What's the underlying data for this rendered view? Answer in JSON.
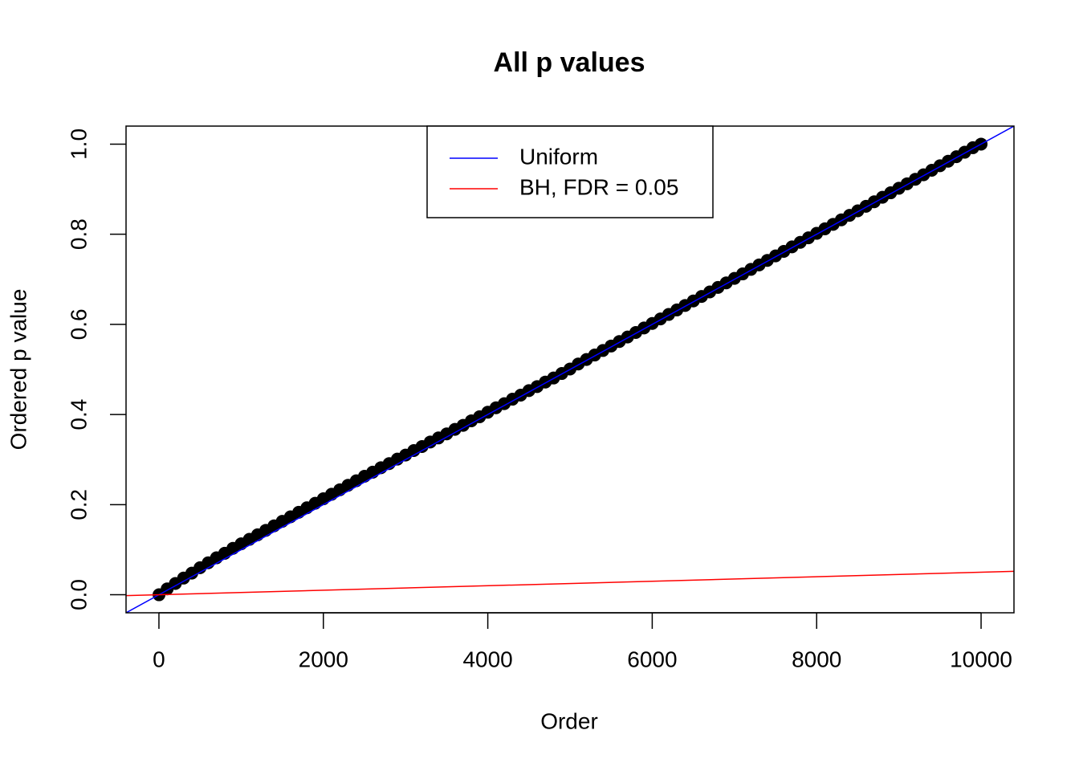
{
  "chart_data": {
    "type": "scatter",
    "title": "All p values",
    "xlabel": "Order",
    "ylabel": "Ordered p value",
    "x": [
      1,
      100,
      200,
      300,
      400,
      500,
      600,
      700,
      800,
      900,
      1000,
      1100,
      1200,
      1300,
      1400,
      1500,
      1600,
      1700,
      1800,
      1900,
      2000,
      2100,
      2200,
      2300,
      2400,
      2500,
      2600,
      2700,
      2800,
      2900,
      3000,
      3100,
      3200,
      3300,
      3400,
      3500,
      3600,
      3700,
      3800,
      3900,
      4000,
      4100,
      4200,
      4300,
      4400,
      4500,
      4600,
      4700,
      4800,
      4900,
      5000,
      5100,
      5200,
      5300,
      5400,
      5500,
      5600,
      5700,
      5800,
      5900,
      6000,
      6100,
      6200,
      6300,
      6400,
      6500,
      6600,
      6700,
      6800,
      6900,
      7000,
      7100,
      7200,
      7300,
      7400,
      7500,
      7600,
      7700,
      7800,
      7900,
      8000,
      8100,
      8200,
      8300,
      8400,
      8500,
      8600,
      8700,
      8800,
      8900,
      9000,
      9100,
      9200,
      9300,
      9400,
      9500,
      9600,
      9700,
      9800,
      9900,
      10000
    ],
    "values": [
      0.0,
      0.013,
      0.025,
      0.037,
      0.048,
      0.06,
      0.071,
      0.082,
      0.092,
      0.103,
      0.113,
      0.123,
      0.133,
      0.143,
      0.153,
      0.163,
      0.173,
      0.183,
      0.193,
      0.203,
      0.213,
      0.223,
      0.233,
      0.243,
      0.253,
      0.263,
      0.272,
      0.282,
      0.291,
      0.301,
      0.31,
      0.32,
      0.329,
      0.339,
      0.348,
      0.357,
      0.367,
      0.376,
      0.386,
      0.395,
      0.405,
      0.415,
      0.424,
      0.434,
      0.443,
      0.453,
      0.462,
      0.472,
      0.481,
      0.491,
      0.501,
      0.512,
      0.522,
      0.532,
      0.542,
      0.552,
      0.562,
      0.572,
      0.582,
      0.592,
      0.602,
      0.612,
      0.622,
      0.632,
      0.642,
      0.652,
      0.662,
      0.672,
      0.682,
      0.692,
      0.702,
      0.712,
      0.722,
      0.732,
      0.742,
      0.752,
      0.762,
      0.772,
      0.782,
      0.792,
      0.802,
      0.812,
      0.822,
      0.832,
      0.842,
      0.852,
      0.862,
      0.872,
      0.882,
      0.892,
      0.902,
      0.912,
      0.922,
      0.932,
      0.942,
      0.952,
      0.962,
      0.972,
      0.982,
      0.992,
      1.0
    ],
    "color": "#000000",
    "lines": [
      {
        "name": "Uniform",
        "color": "#0000ff",
        "x": [
          0,
          10000
        ],
        "values": [
          0,
          1
        ]
      },
      {
        "name": "BH, FDR = 0.05",
        "color": "#ff0000",
        "x": [
          0,
          10000
        ],
        "values": [
          0,
          0.05
        ]
      }
    ],
    "xlim": [
      -400,
      10400
    ],
    "ylim": [
      -0.04,
      1.04
    ],
    "xticks": [
      0,
      2000,
      4000,
      6000,
      8000,
      10000
    ],
    "yticks": [
      {
        "value": 0,
        "label": "0.0"
      },
      {
        "value": 0.2,
        "label": "0.2"
      },
      {
        "value": 0.4,
        "label": "0.4"
      },
      {
        "value": 0.6,
        "label": "0.6"
      },
      {
        "value": 0.8,
        "label": "0.8"
      },
      {
        "value": 1,
        "label": "1.0"
      }
    ],
    "legend": "top"
  }
}
